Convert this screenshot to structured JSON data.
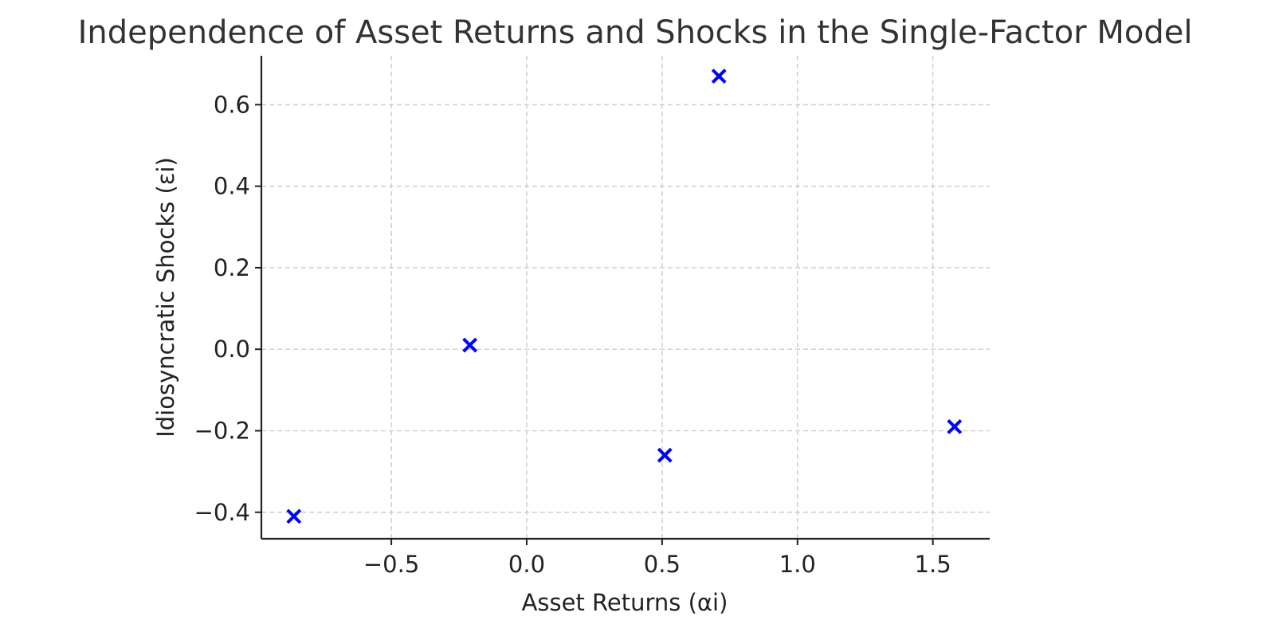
{
  "chart_data": {
    "type": "scatter",
    "title": "Independence of Asset Returns and Shocks in the Single-Factor Model",
    "xlabel": "Asset Returns (αi)",
    "ylabel": "Idiosyncratic Shocks (εi)",
    "xlim": [
      -0.98,
      1.71
    ],
    "ylim": [
      -0.465,
      0.72
    ],
    "x_ticks": [
      -0.5,
      0.0,
      0.5,
      1.0,
      1.5
    ],
    "x_tick_labels": [
      "−0.5",
      "0.0",
      "0.5",
      "1.0",
      "1.5"
    ],
    "y_ticks": [
      -0.4,
      -0.2,
      0.0,
      0.2,
      0.4,
      0.6
    ],
    "y_tick_labels": [
      "−0.4",
      "−0.2",
      "0.0",
      "0.2",
      "0.4",
      "0.6"
    ],
    "grid": true,
    "marker": "x",
    "marker_color": "#0000ff",
    "points": [
      {
        "x": -0.86,
        "y": -0.41
      },
      {
        "x": -0.21,
        "y": 0.01
      },
      {
        "x": 0.51,
        "y": -0.26
      },
      {
        "x": 0.71,
        "y": 0.67
      },
      {
        "x": 1.58,
        "y": -0.19
      }
    ]
  }
}
